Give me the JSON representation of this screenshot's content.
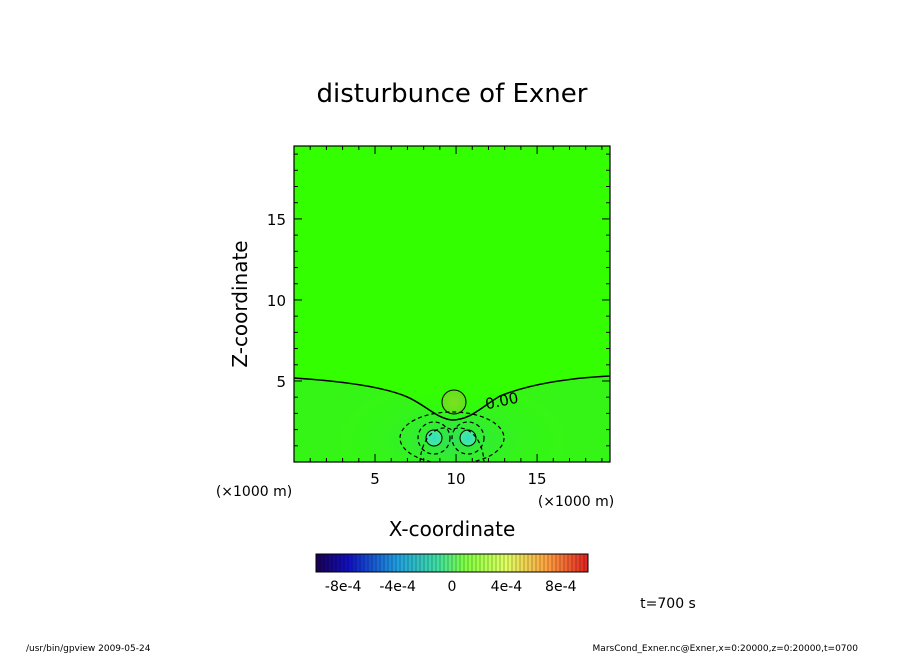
{
  "chart_data": {
    "type": "heatmap",
    "title": "disturbunce of Exner",
    "xlabel": "X-coordinate",
    "ylabel": "Z-coordinate",
    "x_unit": "(×1000 m)",
    "y_unit": "(×1000 m)",
    "xlim": [
      0,
      19.5
    ],
    "ylim": [
      0,
      19.5
    ],
    "x_ticks": [
      5,
      10,
      15
    ],
    "y_ticks": [
      5,
      10,
      15
    ],
    "contour_label": "0.00",
    "colorbar": {
      "min": -0.001,
      "max": 0.001,
      "tick_labels": [
        "-8e-4",
        "-4e-4",
        "0",
        "4e-4",
        "8e-4"
      ],
      "tick_values": [
        -0.0008,
        -0.0004,
        0,
        0.0004,
        0.0008
      ]
    },
    "time_label": "t=700 s",
    "grid": false
  },
  "footer": {
    "left": "/usr/bin/gpview  2009-05-24",
    "right": "MarsCond_Exner.nc@Exner,x=0:20000,z=0:20000,t=0700"
  },
  "colors": {
    "background_field": "#33ff00",
    "positive_blob": "#66ee22",
    "negative_core": "#33ddcc"
  }
}
